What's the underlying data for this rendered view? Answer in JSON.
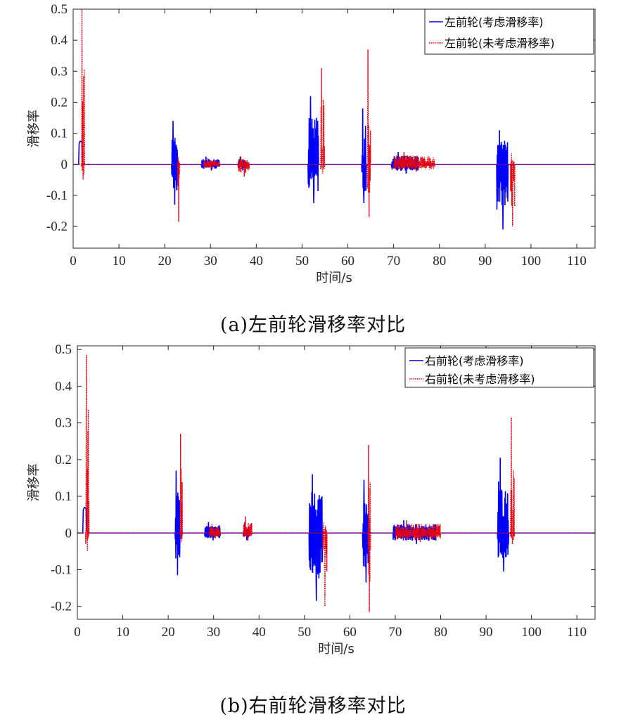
{
  "chart_data": [
    {
      "type": "line",
      "xlabel": "时间/s",
      "ylabel": "滑移率",
      "xlim": [
        0,
        114
      ],
      "ylim": [
        -0.27,
        0.5
      ],
      "xticks": [
        0,
        10,
        20,
        30,
        40,
        50,
        60,
        70,
        80,
        90,
        100,
        110
      ],
      "yticks": [
        0.5,
        0.4,
        0.3,
        0.2,
        0.1,
        0,
        -0.1,
        -0.2
      ],
      "ytick_labels": [
        "0.5",
        "0.4",
        "0.3",
        "0.2",
        "0.1",
        "0",
        "-0.1",
        "-0.2"
      ],
      "grid": false,
      "legend_position": "top-right",
      "caption": "(a)左前轮滑移率对比",
      "series": [
        {
          "name": "左前轮(考虑滑移率)",
          "color": "#0000ff",
          "style": "solid",
          "bursts": [
            {
              "start": 1.2,
              "end": 2.2,
              "amp": 0.075,
              "min": 0.0,
              "kind": "hump"
            },
            {
              "start": 21.5,
              "end": 22.8,
              "amp": 0.14,
              "min": -0.13
            },
            {
              "start": 28.0,
              "end": 32.0,
              "amp": 0.025,
              "min": -0.02
            },
            {
              "start": 36.0,
              "end": 38.0,
              "amp": 0.025,
              "min": -0.02
            },
            {
              "start": 51.3,
              "end": 53.6,
              "amp": 0.22,
              "min": -0.125
            },
            {
              "start": 63.0,
              "end": 64.0,
              "amp": 0.18,
              "min": -0.125
            },
            {
              "start": 69.5,
              "end": 75.5,
              "amp": 0.04,
              "min": -0.03
            },
            {
              "start": 92.5,
              "end": 95.0,
              "amp": 0.11,
              "min": -0.21
            }
          ]
        },
        {
          "name": "左前轮(未考虑滑移率)",
          "color": "#e8000b",
          "style": "dotted",
          "bursts": [
            {
              "start": 1.8,
              "end": 2.5,
              "amp": 0.5,
              "min": -0.05
            },
            {
              "start": 22.8,
              "end": 23.3,
              "amp": 0.025,
              "min": -0.185
            },
            {
              "start": 28.5,
              "end": 32.0,
              "amp": 0.02,
              "min": -0.015
            },
            {
              "start": 36.0,
              "end": 38.5,
              "amp": 0.025,
              "min": -0.04
            },
            {
              "start": 54.0,
              "end": 55.0,
              "amp": 0.31,
              "min": -0.03
            },
            {
              "start": 64.2,
              "end": 65.0,
              "amp": 0.37,
              "min": -0.17
            },
            {
              "start": 70.0,
              "end": 79.0,
              "amp": 0.04,
              "min": -0.025
            },
            {
              "start": 95.5,
              "end": 96.5,
              "amp": 0.035,
              "min": -0.2
            }
          ]
        }
      ]
    },
    {
      "type": "line",
      "xlabel": "时间/s",
      "ylabel": "滑移率",
      "xlim": [
        0,
        114
      ],
      "ylim": [
        -0.235,
        0.51
      ],
      "xticks": [
        0,
        10,
        20,
        30,
        40,
        50,
        60,
        70,
        80,
        90,
        100,
        110
      ],
      "yticks": [
        0.5,
        0.4,
        0.3,
        0.2,
        0.1,
        0,
        -0.1,
        -0.2
      ],
      "ytick_labels": [
        "0.5",
        "0.4",
        "0.3",
        "0.2",
        "0.1",
        "0",
        "-0.1",
        "-0.2"
      ],
      "grid": false,
      "legend_position": "top-right",
      "caption": "(b)右前轮滑移率对比",
      "series": [
        {
          "name": "右前轮(考虑滑移率)",
          "color": "#0000ff",
          "style": "solid",
          "bursts": [
            {
              "start": 1.2,
              "end": 2.2,
              "amp": 0.07,
              "min": 0.0,
              "kind": "hump"
            },
            {
              "start": 21.5,
              "end": 22.6,
              "amp": 0.17,
              "min": -0.115
            },
            {
              "start": 28.0,
              "end": 31.5,
              "amp": 0.03,
              "min": -0.02
            },
            {
              "start": 36.5,
              "end": 38.0,
              "amp": 0.03,
              "min": -0.02
            },
            {
              "start": 51.0,
              "end": 54.0,
              "amp": 0.16,
              "min": -0.185
            },
            {
              "start": 62.8,
              "end": 64.2,
              "amp": 0.145,
              "min": -0.135
            },
            {
              "start": 69.5,
              "end": 79.0,
              "amp": 0.035,
              "min": -0.03
            },
            {
              "start": 92.5,
              "end": 95.0,
              "amp": 0.205,
              "min": -0.105
            }
          ]
        },
        {
          "name": "右前轮(未考虑滑移率)",
          "color": "#e8000b",
          "style": "dotted",
          "bursts": [
            {
              "start": 1.8,
              "end": 2.6,
              "amp": 0.485,
              "min": -0.05
            },
            {
              "start": 22.6,
              "end": 23.2,
              "amp": 0.27,
              "min": -0.025
            },
            {
              "start": 29.0,
              "end": 31.5,
              "amp": 0.025,
              "min": -0.015
            },
            {
              "start": 36.5,
              "end": 38.5,
              "amp": 0.045,
              "min": -0.02
            },
            {
              "start": 54.0,
              "end": 55.0,
              "amp": 0.03,
              "min": -0.2
            },
            {
              "start": 64.0,
              "end": 64.6,
              "amp": 0.24,
              "min": -0.215
            },
            {
              "start": 70.0,
              "end": 80.0,
              "amp": 0.035,
              "min": -0.025
            },
            {
              "start": 95.3,
              "end": 96.3,
              "amp": 0.315,
              "min": -0.03
            }
          ]
        }
      ]
    }
  ]
}
